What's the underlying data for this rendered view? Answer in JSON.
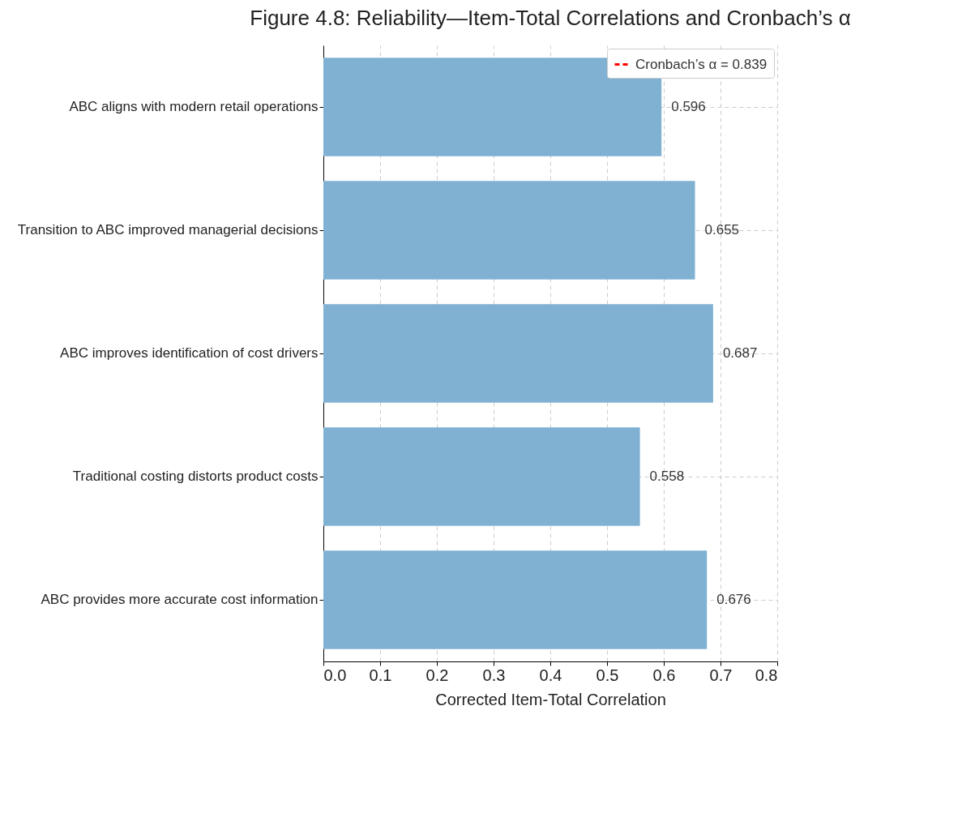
{
  "chart_data": {
    "type": "bar",
    "title": "Figure 4.8: Reliability—Item-Total Correlations and Cronbach’s α",
    "xlabel": "Corrected Item-Total Correlation",
    "orientation": "horizontal",
    "categories": [
      "ABC aligns with modern retail operations",
      "Transition to ABC improved managerial decisions",
      "ABC improves identification of cost drivers",
      "Traditional costing distorts product costs",
      "ABC provides more accurate cost information"
    ],
    "series": [
      {
        "color": "#80b1d3",
        "values": [
          0.596,
          0.655,
          0.687,
          0.558,
          0.676
        ]
      },
      {
        "type": "line",
        "name": "Cronbach’s α = 0.839",
        "color": "#ff0000",
        "line_style": "dashed",
        "values": [
          null,
          null,
          null,
          null,
          null
        ]
      }
    ],
    "xlim": [
      0,
      0.8
    ],
    "xticks": [
      {
        "value": 0,
        "label": "0.0"
      },
      0.1,
      0.2,
      0.3,
      0.4,
      0.5,
      0.6,
      0.7,
      0.8
    ],
    "grid": true,
    "data_labels": true,
    "legend": "top right"
  }
}
